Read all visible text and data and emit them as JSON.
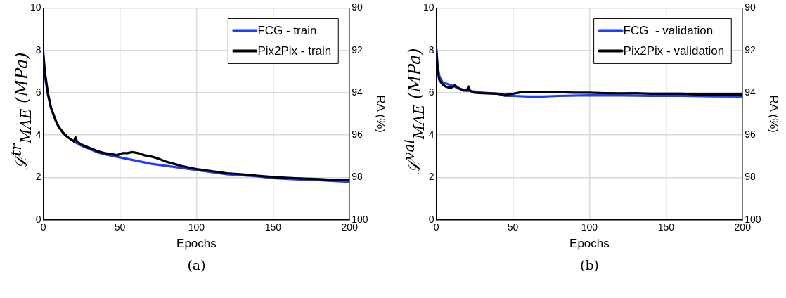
{
  "chart_data": [
    {
      "type": "line",
      "xlabel": "Epochs",
      "ylabel": "ℒ$^{tr}$$_{MAE}$ (MPa)",
      "y2label": "RA (%)",
      "annotations": [
        "(a)"
      ],
      "xlim": [
        0,
        200
      ],
      "xticks": [
        0,
        50,
        100,
        150,
        200
      ],
      "ylim": [
        0,
        10
      ],
      "yticks": [
        0,
        2,
        4,
        6,
        8,
        10
      ],
      "y2lim": [
        100,
        90
      ],
      "y2ticks": [
        90,
        92,
        94,
        96,
        98,
        100
      ],
      "grid": true,
      "legend": "top right",
      "marker": "none",
      "line_style": "solid",
      "series": [
        {
          "name": "FCG - train",
          "color": "#1f3cff",
          "x": [
            0,
            1,
            3,
            5,
            8,
            10,
            13,
            16,
            20,
            25,
            30,
            35,
            40,
            50,
            60,
            70,
            80,
            90,
            100,
            110,
            120,
            130,
            140,
            150,
            160,
            170,
            180,
            190,
            200
          ],
          "values": [
            7.8,
            6.8,
            5.9,
            5.3,
            4.7,
            4.4,
            4.1,
            3.9,
            3.7,
            3.5,
            3.35,
            3.2,
            3.1,
            2.95,
            2.8,
            2.65,
            2.55,
            2.45,
            2.35,
            2.25,
            2.15,
            2.1,
            2.05,
            1.97,
            1.93,
            1.9,
            1.87,
            1.83,
            1.8
          ]
        },
        {
          "name": "Pix2Pix - train",
          "color": "#000000",
          "x": [
            0,
            1,
            3,
            5,
            8,
            10,
            13,
            16,
            20,
            21,
            22,
            25,
            30,
            35,
            40,
            45,
            48,
            50,
            52,
            55,
            58,
            62,
            66,
            70,
            75,
            80,
            90,
            100,
            110,
            120,
            130,
            140,
            150,
            160,
            170,
            180,
            190,
            200
          ],
          "values": [
            7.9,
            7.0,
            6.0,
            5.3,
            4.7,
            4.4,
            4.1,
            3.9,
            3.7,
            3.9,
            3.7,
            3.55,
            3.4,
            3.25,
            3.15,
            3.1,
            3.05,
            3.1,
            3.15,
            3.15,
            3.2,
            3.15,
            3.05,
            3.0,
            2.9,
            2.75,
            2.55,
            2.4,
            2.3,
            2.2,
            2.15,
            2.08,
            2.02,
            1.98,
            1.95,
            1.92,
            1.88,
            1.88
          ]
        }
      ]
    },
    {
      "type": "line",
      "xlabel": "Epochs",
      "ylabel": "ℒ$^{val}$$_{MAE}$ (MPa)",
      "y2label": "RA (%)",
      "annotations": [
        "(b)"
      ],
      "xlim": [
        0,
        200
      ],
      "xticks": [
        0,
        50,
        100,
        150,
        200
      ],
      "ylim": [
        0,
        10
      ],
      "yticks": [
        0,
        2,
        4,
        6,
        8,
        10
      ],
      "y2lim": [
        100,
        90
      ],
      "y2ticks": [
        90,
        92,
        94,
        96,
        98,
        100
      ],
      "grid": true,
      "legend": "top right",
      "marker": "none",
      "line_style": "solid",
      "series": [
        {
          "name": "FCG  - validation",
          "color": "#1f3cff",
          "x": [
            0,
            1,
            2,
            4,
            6,
            10,
            15,
            20,
            25,
            30,
            40,
            45,
            50,
            60,
            70,
            80,
            100,
            120,
            140,
            160,
            180,
            200
          ],
          "values": [
            8.1,
            7.2,
            6.8,
            6.5,
            6.45,
            6.35,
            6.2,
            6.1,
            6.05,
            6.0,
            5.95,
            5.85,
            5.85,
            5.82,
            5.82,
            5.85,
            5.88,
            5.87,
            5.85,
            5.85,
            5.83,
            5.82
          ]
        },
        {
          "name": "Pix2Pix - validation",
          "color": "#000000",
          "x": [
            0,
            1,
            2,
            4,
            6,
            8,
            10,
            12,
            15,
            18,
            20,
            21,
            22,
            25,
            30,
            40,
            45,
            50,
            55,
            60,
            70,
            80,
            90,
            100,
            110,
            120,
            130,
            140,
            150,
            160,
            170,
            180,
            190,
            200
          ],
          "values": [
            8.0,
            7.0,
            6.6,
            6.4,
            6.3,
            6.25,
            6.25,
            6.35,
            6.2,
            6.1,
            6.1,
            6.3,
            6.1,
            6.0,
            5.98,
            5.95,
            5.9,
            5.95,
            6.02,
            6.03,
            6.02,
            6.03,
            6.0,
            6.0,
            5.98,
            5.97,
            5.98,
            5.95,
            5.95,
            5.95,
            5.92,
            5.92,
            5.92,
            5.92
          ]
        }
      ]
    }
  ]
}
